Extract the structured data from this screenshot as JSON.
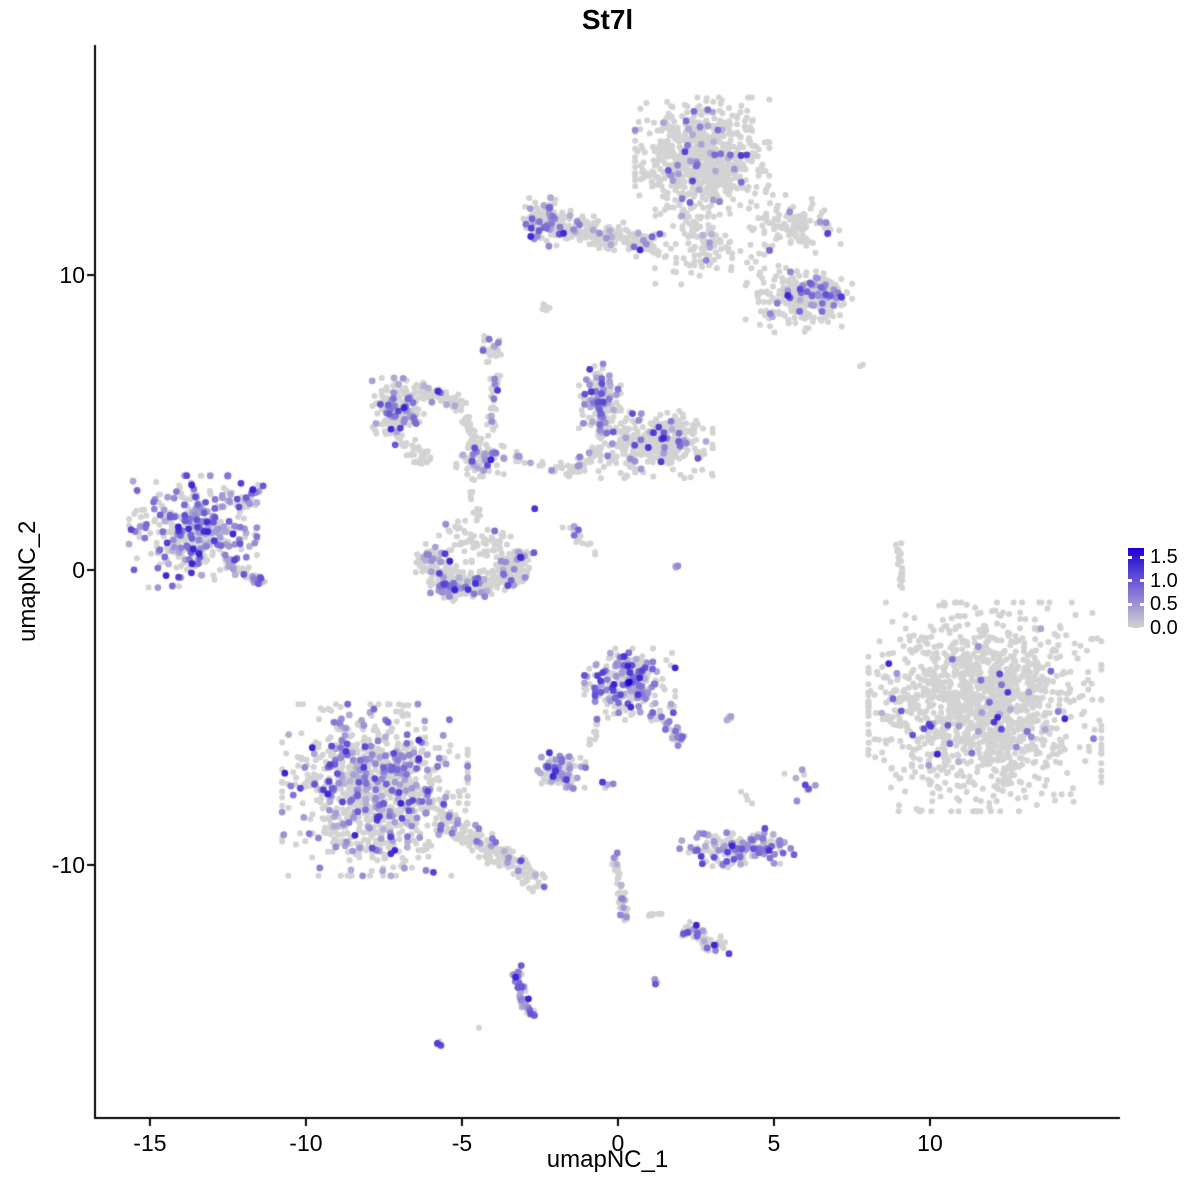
{
  "title": "St7l",
  "axes": {
    "x": {
      "label": "umapNC_1",
      "ticks": [
        -15,
        -10,
        -5,
        0,
        5,
        10
      ]
    },
    "y": {
      "label": "umapNC_2",
      "ticks": [
        10,
        0,
        -10
      ]
    }
  },
  "legend": {
    "tick_values": [
      1.5,
      1.0,
      0.5,
      0.0
    ],
    "top_value": 1.7,
    "low_color": "#d3d3d3",
    "high_color": "#1c00d6"
  },
  "chart_data": {
    "type": "scatter",
    "title": "St7l",
    "xlabel": "umapNC_1",
    "ylabel": "umapNC_2",
    "xlim": [
      -16.76,
      16.09
    ],
    "ylim": [
      -18.58,
      17.8
    ],
    "grid": false,
    "legend_position": "right",
    "point_color_low": "#d3d3d3",
    "point_color_high": "#1c00d6",
    "value_max": 1.7,
    "gray_color": "#d3d3d3",
    "seed": 20240917,
    "clusters": [
      {
        "t": "b",
        "cx": 2.7,
        "cy": 14.0,
        "rx": 1.7,
        "ry": 1.6,
        "n": 780,
        "f": 0.055
      },
      {
        "t": "s",
        "x1": 2.0,
        "y1": 12.0,
        "x2": 3.3,
        "y2": 10.8,
        "w": 0.5,
        "n": 60,
        "f": 0.06
      },
      {
        "t": "b",
        "cx": 2.63,
        "cy": 10.6,
        "rx": 1.3,
        "ry": 0.8,
        "n": 55,
        "f": 0.05
      },
      {
        "t": "b",
        "cx": 5.7,
        "cy": 11.7,
        "rx": 1.25,
        "ry": 0.8,
        "n": 120,
        "f": 0.04
      },
      {
        "t": "b",
        "cx": 5.8,
        "cy": 9.25,
        "rx": 1.35,
        "ry": 0.95,
        "n": 210,
        "f": 0.1
      },
      {
        "t": "b",
        "cx": 6.6,
        "cy": 9.4,
        "rx": 0.6,
        "ry": 0.42,
        "n": 70,
        "f": 0.35
      },
      {
        "t": "s",
        "x1": -2.88,
        "y1": 11.95,
        "x2": 1.35,
        "y2": 10.95,
        "w": 0.52,
        "n": 280,
        "f": 0.07
      },
      {
        "t": "b",
        "cx": -2.34,
        "cy": 11.8,
        "rx": 0.5,
        "ry": 0.65,
        "n": 70,
        "f": 0.35
      },
      {
        "t": "b",
        "cx": -2.34,
        "cy": 8.8,
        "rx": 0.15,
        "ry": 0.2,
        "n": 6,
        "f": 0
      },
      {
        "t": "b",
        "cx": -7.05,
        "cy": 5.5,
        "rx": 0.66,
        "ry": 0.8,
        "n": 175,
        "f": 0.28
      },
      {
        "t": "s",
        "x1": -6.5,
        "y1": 6.1,
        "x2": -5.06,
        "y2": 5.7,
        "w": 0.3,
        "n": 60,
        "f": 0.05
      },
      {
        "t": "s",
        "x1": -5.13,
        "y1": 5.5,
        "x2": -4.49,
        "y2": 4.14,
        "w": 0.25,
        "n": 40,
        "f": 0.1
      },
      {
        "t": "s",
        "x1": -6.99,
        "y1": 4.41,
        "x2": -6.03,
        "y2": 3.66,
        "w": 0.3,
        "n": 40,
        "f": 0.08
      },
      {
        "t": "b",
        "cx": -4.42,
        "cy": 3.66,
        "rx": 0.6,
        "ry": 0.48,
        "n": 85,
        "f": 0.2
      },
      {
        "t": "s",
        "x1": -4.17,
        "y1": 4.0,
        "x2": -3.88,
        "y2": 6.7,
        "w": 0.18,
        "n": 35,
        "f": 0.1
      },
      {
        "t": "b",
        "cx": -4.1,
        "cy": 7.4,
        "rx": 0.38,
        "ry": 0.42,
        "n": 25,
        "f": 0.15
      },
      {
        "t": "a",
        "cx": -4.58,
        "cy": 0.75,
        "r": 1.5,
        "a1": 185,
        "a2": 355,
        "w": 0.55,
        "sy": 0.85,
        "n": 340,
        "f": 0.15
      },
      {
        "t": "b",
        "cx": -4.58,
        "cy": 0.9,
        "rx": 1.25,
        "ry": 0.65,
        "n": 70,
        "f": 0.1
      },
      {
        "t": "b",
        "cx": -5.35,
        "cy": -0.65,
        "rx": 0.55,
        "ry": 0.33,
        "n": 55,
        "f": 0.45
      },
      {
        "t": "b",
        "cx": -0.58,
        "cy": 5.6,
        "rx": 0.53,
        "ry": 1.1,
        "n": 155,
        "f": 0.3
      },
      {
        "t": "b",
        "cx": 1.2,
        "cy": 4.25,
        "rx": 1.45,
        "ry": 0.9,
        "n": 340,
        "f": 0.1
      },
      {
        "t": "s",
        "x1": -1.7,
        "y1": 3.3,
        "x2": -0.58,
        "y2": 4.07,
        "w": 0.3,
        "n": 50,
        "f": 0.06
      },
      {
        "t": "b",
        "cx": -13.62,
        "cy": 1.3,
        "rx": 1.62,
        "ry": 1.5,
        "n": 390,
        "f": 0.4
      },
      {
        "t": "s",
        "x1": -12.2,
        "y1": 2.15,
        "x2": -11.4,
        "y2": 2.9,
        "w": 0.22,
        "n": 25,
        "f": 0.4
      },
      {
        "t": "s",
        "x1": -12.5,
        "y1": 0.17,
        "x2": -11.4,
        "y2": -0.35,
        "w": 0.25,
        "n": 30,
        "f": 0.3
      },
      {
        "t": "s",
        "x1": 8.97,
        "y1": 1.0,
        "x2": 9.13,
        "y2": -0.6,
        "w": 0.12,
        "n": 22,
        "f": 0.08
      },
      {
        "t": "b",
        "cx": 7.85,
        "cy": 6.95,
        "rx": 0.1,
        "ry": 0.1,
        "n": 2,
        "f": 0
      },
      {
        "t": "b",
        "cx": 11.76,
        "cy": -4.64,
        "rx": 2.95,
        "ry": 2.8,
        "n": 1350,
        "f": 0.032
      },
      {
        "t": "b",
        "cx": 8.81,
        "cy": -4.1,
        "rx": 0.4,
        "ry": 1.25,
        "n": 28,
        "f": 0.1
      },
      {
        "t": "b",
        "cx": -7.79,
        "cy": -7.46,
        "rx": 2.35,
        "ry": 2.3,
        "n": 950,
        "f": 0.27
      },
      {
        "t": "s",
        "x1": -5.71,
        "y1": -8.4,
        "x2": -2.34,
        "y2": -10.6,
        "w": 0.45,
        "n": 190,
        "f": 0.18
      },
      {
        "t": "b",
        "cx": -1.86,
        "cy": -6.8,
        "rx": 0.65,
        "ry": 0.48,
        "n": 95,
        "f": 0.45
      },
      {
        "t": "b",
        "cx": -0.38,
        "cy": -7.2,
        "rx": 0.18,
        "ry": 0.18,
        "n": 4,
        "f": 0.5
      },
      {
        "t": "b",
        "cx": -0.71,
        "cy": -5.15,
        "rx": 0.08,
        "ry": 0.08,
        "n": 2,
        "f": 0.5
      },
      {
        "t": "b",
        "cx": 0.38,
        "cy": -3.9,
        "rx": 1.15,
        "ry": 0.98,
        "n": 245,
        "f": 0.45
      },
      {
        "t": "b",
        "cx": 0.38,
        "cy": -3.8,
        "rx": 0.03,
        "ry": 0.03,
        "n": 1,
        "f": 1,
        "v": 1.75
      },
      {
        "t": "s",
        "x1": 1.19,
        "y1": -4.85,
        "x2": 1.99,
        "y2": -5.76,
        "w": 0.25,
        "n": 45,
        "f": 0.3
      },
      {
        "t": "s",
        "x1": -0.58,
        "y1": -5.15,
        "x2": -0.96,
        "y2": -6.03,
        "w": 0.15,
        "n": 10,
        "f": 0.1
      },
      {
        "t": "b",
        "cx": 3.53,
        "cy": -5.0,
        "rx": 0.25,
        "ry": 0.2,
        "n": 5,
        "f": 0.3
      },
      {
        "t": "b",
        "cx": 4.17,
        "cy": -7.66,
        "rx": 0.22,
        "ry": 0.22,
        "n": 4,
        "f": 0.3
      },
      {
        "t": "b",
        "cx": 5.87,
        "cy": -7.3,
        "rx": 0.42,
        "ry": 0.42,
        "n": 9,
        "f": 0.35
      },
      {
        "t": "b",
        "cx": 3.81,
        "cy": -9.42,
        "rx": 1.45,
        "ry": 0.52,
        "n": 165,
        "f": 0.45
      },
      {
        "t": "s",
        "x1": -0.19,
        "y1": -9.7,
        "x2": 0.32,
        "y2": -12.0,
        "w": 0.18,
        "n": 45,
        "f": 0.25
      },
      {
        "t": "b",
        "cx": 1.09,
        "cy": -11.73,
        "rx": 0.28,
        "ry": 0.12,
        "n": 6,
        "f": 0
      },
      {
        "t": "s",
        "x1": 2.12,
        "y1": -12.17,
        "x2": 3.49,
        "y2": -12.85,
        "w": 0.3,
        "n": 60,
        "f": 0.25
      },
      {
        "t": "b",
        "cx": 1.25,
        "cy": -13.97,
        "rx": 0.15,
        "ry": 0.12,
        "n": 4,
        "f": 0.5
      },
      {
        "t": "s",
        "x1": -3.21,
        "y1": -13.5,
        "x2": -3.11,
        "y2": -14.4,
        "w": 0.18,
        "n": 25,
        "f": 0.55
      },
      {
        "t": "s",
        "x1": -3.11,
        "y1": -14.4,
        "x2": -2.72,
        "y2": -15.1,
        "w": 0.18,
        "n": 30,
        "f": 0.55
      },
      {
        "t": "b",
        "cx": -4.42,
        "cy": -15.53,
        "rx": 0.05,
        "ry": 0.05,
        "n": 1,
        "f": 0
      },
      {
        "t": "b",
        "cx": -5.77,
        "cy": -16.03,
        "rx": 0.16,
        "ry": 0.12,
        "n": 4,
        "f": 0.5
      },
      {
        "t": "s",
        "x1": -3.72,
        "y1": 3.86,
        "x2": -1.92,
        "y2": 3.4,
        "w": 0.25,
        "n": 22,
        "f": 0.08
      },
      {
        "t": "b",
        "cx": -2.69,
        "cy": 2.1,
        "rx": 0.05,
        "ry": 0.05,
        "n": 1,
        "f": 1
      },
      {
        "t": "s",
        "x1": -1.79,
        "y1": 1.63,
        "x2": -0.58,
        "y2": 0.47,
        "w": 0.18,
        "n": 15,
        "f": 0.15
      },
      {
        "t": "b",
        "cx": 1.92,
        "cy": 0.07,
        "rx": 0.12,
        "ry": 0.12,
        "n": 3,
        "f": 0.5
      },
      {
        "t": "s",
        "x1": -4.74,
        "y1": 2.7,
        "x2": -4.42,
        "y2": 1.7,
        "w": 0.2,
        "n": 12,
        "f": 0.1
      }
    ]
  }
}
